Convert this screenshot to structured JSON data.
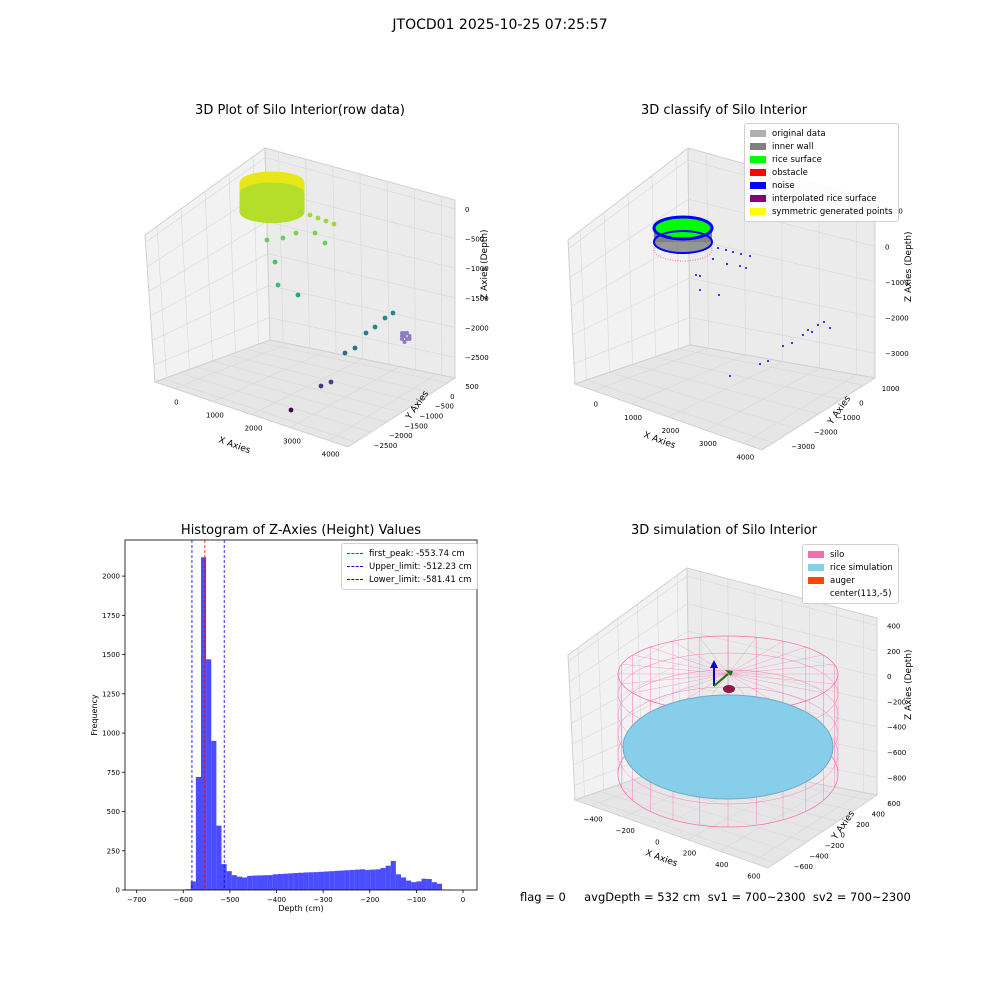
{
  "figure": {
    "suptitle": "JTOCD01 2025-10-25 07:25:57",
    "status": "flag = 0     avgDepth = 532 cm  sv1 = 700~2300  sv2 = 700~2300"
  },
  "plots": {
    "raw": {
      "title": "3D Plot of Silo Interior(row data)",
      "xlabel": "X Axies",
      "ylabel": "Y Axies",
      "zlabel": "Z Axies (Depth)",
      "xticks": [
        "0",
        "1000",
        "2000",
        "3000",
        "4000"
      ],
      "yticks": [
        "500",
        "0",
        "−500",
        "−1000",
        "−1500",
        "−2000",
        "−2500"
      ],
      "zticks": [
        "0",
        "−500",
        "−1000",
        "−1500",
        "−2000",
        "−2500"
      ]
    },
    "classify": {
      "title": "3D classify of Silo Interior",
      "xlabel": "X Axies",
      "ylabel": "Y Axies",
      "zlabel": "Z Axies (Depth)",
      "xticks": [
        "0",
        "1000",
        "2000",
        "3000",
        "4000"
      ],
      "yticks": [
        "1000",
        "0",
        "−1000",
        "−2000",
        "−3000"
      ],
      "zticks": [
        "1000",
        "0",
        "−1000",
        "−2000",
        "−3000"
      ],
      "legend": [
        {
          "label": "original data",
          "color": "#b0b0b0"
        },
        {
          "label": "inner wall",
          "color": "#808080"
        },
        {
          "label": "rice surface",
          "color": "#00ff00"
        },
        {
          "label": "obstacle",
          "color": "#ff0000"
        },
        {
          "label": "noise",
          "color": "#0000ff"
        },
        {
          "label": "interpolated rice surface",
          "color": "#800080"
        },
        {
          "label": "symmetric generated points",
          "color": "#ffff00"
        }
      ]
    },
    "simulation": {
      "title": "3D simulation of Silo Interior",
      "xlabel": "X Axies",
      "ylabel": "Y Axies",
      "zlabel": "Z Axies (Depth)",
      "xticks": [
        "−400",
        "−200",
        "0",
        "200",
        "400",
        "600"
      ],
      "yticks": [
        "600",
        "400",
        "200",
        "0",
        "−200",
        "−400",
        "−600"
      ],
      "zticks": [
        "400",
        "200",
        "0",
        "−200",
        "−400",
        "−600",
        "−800"
      ],
      "legend": [
        {
          "label": "silo",
          "color": "#ff69b4"
        },
        {
          "label": "rice simulation",
          "color": "#87ceeb"
        },
        {
          "label": "auger",
          "color": "#ff4500"
        },
        {
          "label": "center(113,-5)",
          "color": "#ffffff"
        }
      ]
    }
  },
  "chart_data": [
    {
      "type": "bar",
      "title": "Histogram of Z-Axies (Height) Values",
      "xlabel": "Depth (cm)",
      "ylabel": "Frequency",
      "xlim": [
        -725,
        30
      ],
      "ylim": [
        0,
        2230
      ],
      "xticks": [
        -700,
        -600,
        -500,
        -400,
        -300,
        -200,
        -100,
        0
      ],
      "yticks": [
        0,
        250,
        500,
        750,
        1000,
        1250,
        1500,
        1750,
        2000
      ],
      "bar_color": "#0000ff",
      "bin_edges": [
        -595,
        -584,
        -573,
        -562,
        -551,
        -540,
        -529,
        -518,
        -507,
        -496,
        -485,
        -474,
        -463,
        -452,
        -441,
        -430,
        -419,
        -408,
        -397,
        -386,
        -375,
        -364,
        -353,
        -342,
        -331,
        -320,
        -309,
        -298,
        -287,
        -276,
        -265,
        -254,
        -243,
        -232,
        -221,
        -210,
        -199,
        -188,
        -177,
        -166,
        -155,
        -144,
        -133,
        -122,
        -111,
        -100,
        -89,
        -78,
        -67,
        -56,
        -45,
        -34,
        -23,
        -12,
        -1
      ],
      "values": [
        5,
        55,
        720,
        2120,
        1470,
        950,
        410,
        165,
        120,
        95,
        85,
        80,
        90,
        92,
        93,
        94,
        95,
        100,
        102,
        104,
        106,
        108,
        110,
        112,
        113,
        114,
        116,
        118,
        120,
        122,
        124,
        126,
        128,
        130,
        132,
        128,
        130,
        132,
        140,
        155,
        185,
        100,
        80,
        60,
        50,
        55,
        72,
        70,
        50,
        40,
        2,
        2,
        1,
        1
      ],
      "vlines": [
        {
          "label": "first_peak: -553.74 cm",
          "x": -553.74,
          "color": "#ff0000"
        },
        {
          "label": "Upper_limit: -512.23 cm",
          "x": -512.23,
          "color": "#0000ff"
        },
        {
          "label": "Lower_limit: -581.41 cm",
          "x": -581.41,
          "color": "#0000ff"
        }
      ],
      "legend_position": "upper right"
    }
  ]
}
